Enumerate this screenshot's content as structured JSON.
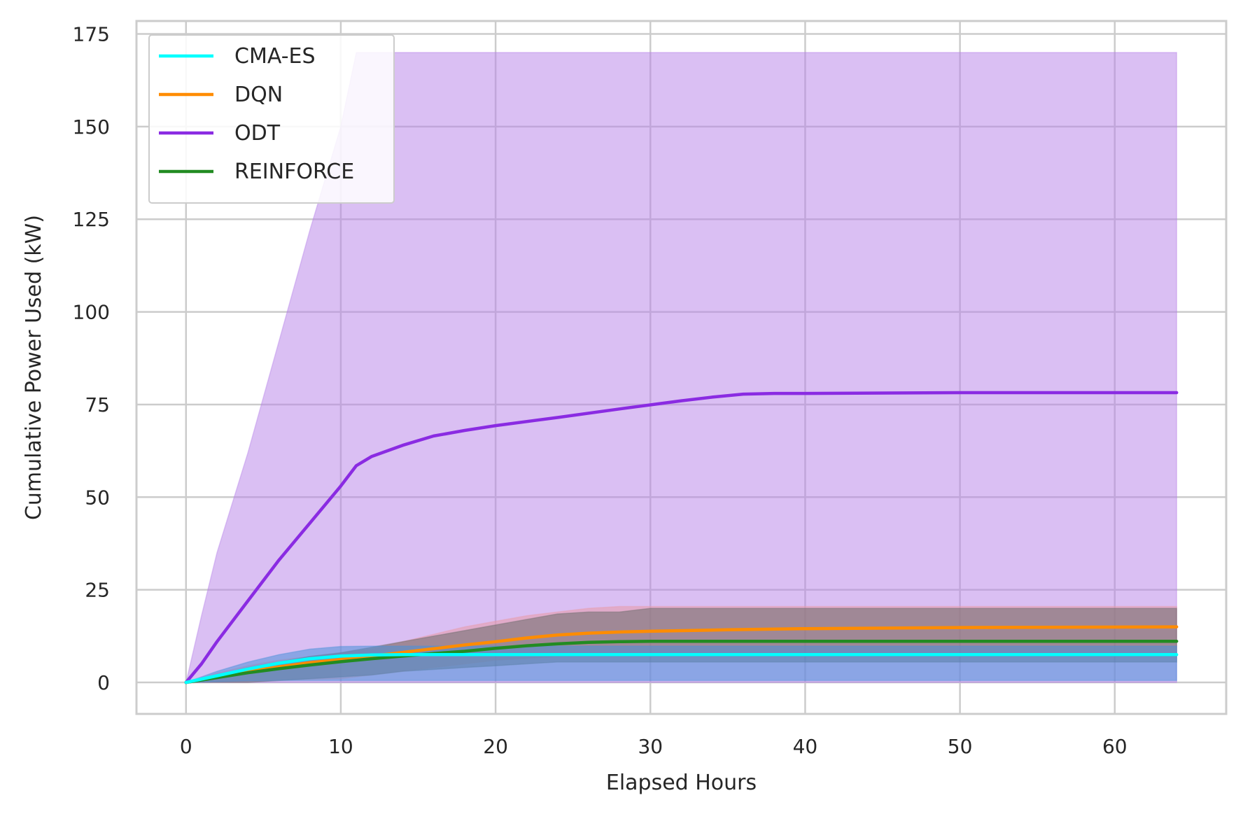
{
  "chart_data": {
    "type": "line",
    "title": "",
    "xlabel": "Elapsed Hours",
    "ylabel": "Cumulative Power Used (kW)",
    "xlim": [
      -3.2,
      67.2
    ],
    "ylim": [
      -8.5,
      178.5
    ],
    "xticks": [
      0,
      10,
      20,
      30,
      40,
      50,
      60
    ],
    "yticks": [
      0,
      25,
      50,
      75,
      100,
      125,
      150,
      175
    ],
    "grid": true,
    "legend_placement": "top-left",
    "series": [
      {
        "name": "CMA-ES",
        "color": "#00ffff",
        "band_color": "#4a90d9",
        "x": [
          0,
          2,
          4,
          6,
          8,
          10,
          12,
          14,
          16,
          20,
          30,
          40,
          50,
          64
        ],
        "y": [
          0,
          1.8,
          3.6,
          5.2,
          6.4,
          7.1,
          7.4,
          7.5,
          7.5,
          7.5,
          7.5,
          7.5,
          7.5,
          7.5
        ],
        "lower": [
          0,
          0.2,
          0.4,
          0.5,
          0.5,
          0.5,
          0.5,
          0.5,
          0.5,
          0.5,
          0.5,
          0.5,
          0.5,
          0.5
        ],
        "upper": [
          0,
          3,
          5.5,
          7.5,
          9,
          9.7,
          9.8,
          9.8,
          9.8,
          9.8,
          9.8,
          9.8,
          9.8,
          9.8
        ]
      },
      {
        "name": "DQN",
        "color": "#ff8c00",
        "band_color": "#e89aa8",
        "x": [
          0,
          2,
          4,
          6,
          8,
          10,
          12,
          14,
          16,
          18,
          20,
          22,
          24,
          26,
          28,
          30,
          35,
          40,
          50,
          64
        ],
        "y": [
          0,
          1.5,
          2.9,
          4.2,
          5.3,
          6.2,
          7.1,
          8.1,
          9.1,
          10.1,
          11,
          12,
          12.8,
          13.3,
          13.6,
          13.8,
          14.2,
          14.5,
          14.8,
          15
        ],
        "lower": [
          0,
          0.2,
          0.4,
          0.6,
          0.8,
          1,
          2,
          3,
          4,
          5,
          6,
          6.5,
          7,
          7,
          7,
          7,
          7,
          7,
          7,
          7
        ],
        "upper": [
          0,
          2.5,
          4.5,
          6,
          7,
          8,
          9,
          11,
          13,
          15,
          16.5,
          18,
          19,
          20,
          20.5,
          20.5,
          20.5,
          20.5,
          20.5,
          20.5
        ]
      },
      {
        "name": "ODT",
        "color": "#8a2be2",
        "band_color": "#b57fe8",
        "x": [
          0,
          1,
          2,
          4,
          6,
          8,
          10,
          11,
          12,
          14,
          16,
          18,
          20,
          24,
          28,
          32,
          34,
          36,
          38,
          40,
          50,
          64
        ],
        "y": [
          0,
          5,
          11,
          22,
          33,
          43,
          53,
          58.5,
          61,
          64,
          66.5,
          68,
          69.3,
          71.5,
          73.8,
          76,
          77,
          77.8,
          78,
          78,
          78.2,
          78.2
        ],
        "lower": [
          0,
          0,
          0,
          0,
          0,
          0,
          0,
          0,
          0,
          0,
          0,
          0,
          0,
          0,
          0,
          0,
          0,
          0,
          0,
          0,
          0,
          0
        ],
        "upper": [
          0,
          18,
          35,
          62,
          92,
          122,
          150,
          170,
          170,
          170,
          170,
          170,
          170,
          170,
          170,
          170,
          170,
          170,
          170,
          170,
          170,
          170
        ]
      },
      {
        "name": "REINFORCE",
        "color": "#228b22",
        "band_color": "#6b6b6b",
        "x": [
          0,
          2,
          4,
          6,
          8,
          10,
          12,
          14,
          16,
          18,
          20,
          22,
          24,
          26,
          28,
          30,
          35,
          40,
          50,
          64
        ],
        "y": [
          0,
          1.3,
          2.6,
          3.7,
          4.7,
          5.6,
          6.4,
          7.1,
          7.8,
          8.4,
          9.2,
          9.9,
          10.4,
          10.8,
          11,
          11.1,
          11.1,
          11.1,
          11.1,
          11.1
        ],
        "lower": [
          0,
          0,
          0,
          0.5,
          1,
          1.5,
          2,
          3,
          3.5,
          4,
          4.5,
          5,
          5.5,
          5.5,
          5.5,
          5.5,
          5.5,
          5.5,
          5.5,
          5.5
        ],
        "upper": [
          0,
          2,
          4,
          5.5,
          7,
          8,
          9.5,
          11,
          12.5,
          14,
          15.5,
          17,
          18.5,
          19,
          19,
          20,
          20,
          20,
          20,
          20
        ]
      }
    ]
  }
}
